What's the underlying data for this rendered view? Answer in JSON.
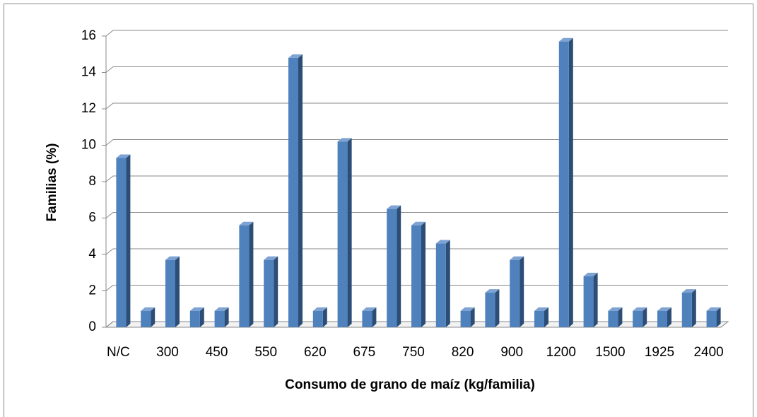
{
  "chart_data": {
    "type": "bar",
    "xlabel": "Consumo de grano de maíz (kg/familia)",
    "ylabel": "Familias (%)",
    "categories": [
      "N/C",
      null,
      "300",
      null,
      "450",
      null,
      "550",
      null,
      "620",
      null,
      "675",
      null,
      "750",
      null,
      "820",
      null,
      "900",
      null,
      "1200",
      null,
      "1500",
      null,
      "1925",
      null,
      "2400"
    ],
    "values": [
      9.3,
      0.9,
      3.7,
      0.9,
      0.9,
      5.6,
      3.7,
      14.8,
      0.9,
      10.2,
      0.9,
      6.5,
      5.6,
      4.6,
      0.9,
      1.9,
      3.7,
      0.9,
      15.7,
      2.8,
      0.9,
      0.9,
      0.9,
      1.9,
      0.9
    ],
    "color": "#4f81bd",
    "ylim": [
      0,
      16
    ],
    "yticks": [
      0,
      2,
      4,
      6,
      8,
      10,
      12,
      14,
      16
    ],
    "grid": true
  }
}
